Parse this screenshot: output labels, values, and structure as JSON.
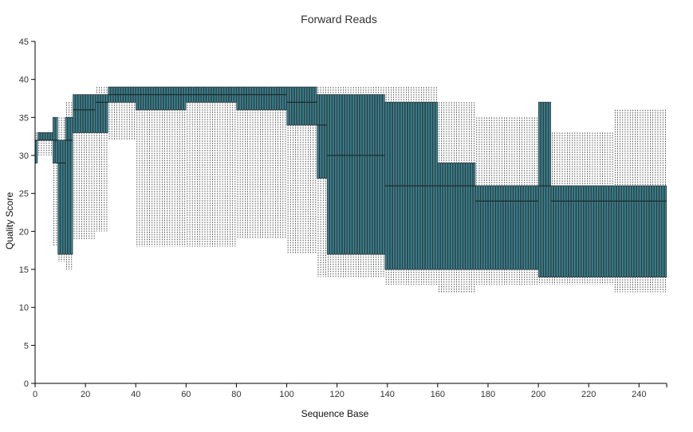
{
  "chart_data": {
    "type": "box",
    "title": "Forward Reads",
    "xlabel": "Sequence Base",
    "ylabel": "Quality Score",
    "xlim": [
      0,
      251
    ],
    "ylim": [
      0,
      45
    ],
    "xticks": [
      "0",
      "20",
      "40",
      "60",
      "80",
      "100",
      "120",
      "140",
      "160",
      "180",
      "200",
      "220",
      "240"
    ],
    "yticks": [
      "0",
      "5",
      "10",
      "15",
      "20",
      "25",
      "30",
      "35",
      "40",
      "45"
    ],
    "grid": false,
    "legend": "none",
    "box_color": "#2b3f46",
    "box_highlight": "#3b8a96",
    "whisker_color": "#222222",
    "segments": [
      {
        "from": 1,
        "to": 1,
        "q1": 29,
        "median": 32,
        "q3": 32,
        "low": 29,
        "high": 33
      },
      {
        "from": 2,
        "to": 7,
        "q1": 32,
        "median": 32,
        "q3": 33,
        "low": 30,
        "high": 33
      },
      {
        "from": 8,
        "to": 9,
        "q1": 29,
        "median": 32,
        "q3": 35,
        "low": 18,
        "high": 35
      },
      {
        "from": 10,
        "to": 12,
        "q1": 17,
        "median": 29,
        "q3": 32,
        "low": 16,
        "high": 35
      },
      {
        "from": 13,
        "to": 15,
        "q1": 17,
        "median": 32,
        "q3": 35,
        "low": 15,
        "high": 37
      },
      {
        "from": 16,
        "to": 24,
        "q1": 33,
        "median": 36,
        "q3": 38,
        "low": 19,
        "high": 38
      },
      {
        "from": 25,
        "to": 29,
        "q1": 33,
        "median": 37,
        "q3": 38,
        "low": 20,
        "high": 39
      },
      {
        "from": 30,
        "to": 40,
        "q1": 37,
        "median": 38,
        "q3": 39,
        "low": 32,
        "high": 39
      },
      {
        "from": 41,
        "to": 60,
        "q1": 36,
        "median": 38,
        "q3": 39,
        "low": 18,
        "high": 39
      },
      {
        "from": 61,
        "to": 80,
        "q1": 37,
        "median": 38,
        "q3": 39,
        "low": 18,
        "high": 39
      },
      {
        "from": 81,
        "to": 100,
        "q1": 36,
        "median": 38,
        "q3": 39,
        "low": 19,
        "high": 39
      },
      {
        "from": 101,
        "to": 112,
        "q1": 34,
        "median": 37,
        "q3": 39,
        "low": 17,
        "high": 39
      },
      {
        "from": 113,
        "to": 116,
        "q1": 27,
        "median": 34,
        "q3": 38,
        "low": 14,
        "high": 39
      },
      {
        "from": 117,
        "to": 124,
        "q1": 17,
        "median": 30,
        "q3": 38,
        "low": 14,
        "high": 39
      },
      {
        "from": 125,
        "to": 139,
        "q1": 17,
        "median": 30,
        "q3": 38,
        "low": 14,
        "high": 39
      },
      {
        "from": 140,
        "to": 160,
        "q1": 15,
        "median": 26,
        "q3": 37,
        "low": 13,
        "high": 39
      },
      {
        "from": 161,
        "to": 175,
        "q1": 15,
        "median": 26,
        "q3": 29,
        "low": 12,
        "high": 37
      },
      {
        "from": 176,
        "to": 200,
        "q1": 15,
        "median": 24,
        "q3": 26,
        "low": 13,
        "high": 35
      },
      {
        "from": 201,
        "to": 205,
        "q1": 14,
        "median": 26,
        "q3": 37,
        "low": 13,
        "high": 37
      },
      {
        "from": 206,
        "to": 230,
        "q1": 14,
        "median": 24,
        "q3": 26,
        "low": 13,
        "high": 33
      },
      {
        "from": 231,
        "to": 251,
        "q1": 14,
        "median": 24,
        "q3": 26,
        "low": 12,
        "high": 36
      }
    ]
  }
}
